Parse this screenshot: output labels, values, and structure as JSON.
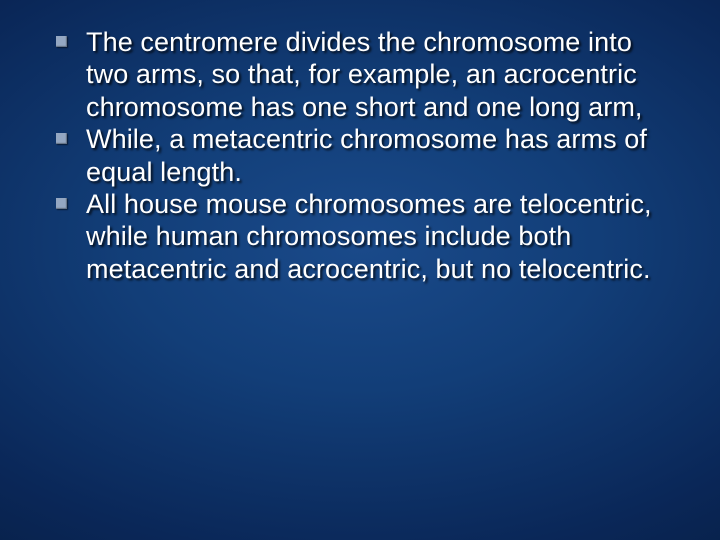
{
  "slide": {
    "background": {
      "gradient_center": "#1a4a8a",
      "gradient_mid": "#0a2758",
      "gradient_edge": "#051938"
    },
    "text_color": "#ffffff",
    "bullet_marker_color": "#94a7c2",
    "font_family": "Arial",
    "font_size_pt": 20,
    "line_height": 1.2,
    "text_shadow_color": "#000000",
    "bullets": [
      "The centromere divides the chromosome into two arms, so that, for example, an acrocentric chromosome has one short and one long arm,",
      "While, a metacentric chromosome has arms of equal length.",
      "All house mouse chromosomes are telocentric, while human chromosomes include both metacentric and acrocentric, but no telocentric."
    ]
  }
}
